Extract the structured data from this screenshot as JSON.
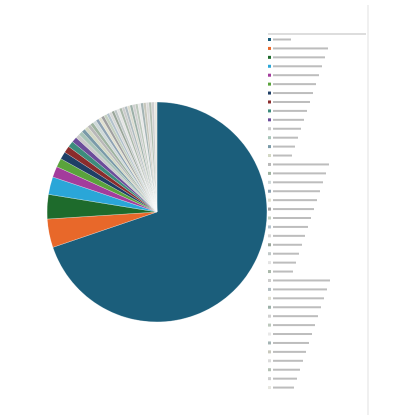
{
  "chart_data": {
    "type": "pie",
    "categories": [
      null,
      null,
      null,
      null,
      null,
      null,
      null,
      null,
      null,
      null,
      null,
      null,
      null,
      null,
      null,
      null,
      null,
      null,
      null,
      null,
      null,
      null,
      null,
      null,
      null,
      null,
      null,
      null,
      null,
      null,
      null,
      null,
      null,
      null,
      null,
      null,
      null,
      null,
      null,
      null
    ],
    "values": [
      70,
      4.2,
      3.6,
      2.6,
      1.6,
      1.3,
      1.1,
      1.0,
      0.9,
      0.8,
      0.6,
      0.6,
      0.55,
      0.55,
      0.5,
      0.5,
      0.5,
      0.45,
      0.45,
      0.45,
      0.45,
      0.4,
      0.4,
      0.4,
      0.4,
      0.4,
      0.4,
      0.4,
      0.4,
      0.4,
      0.4,
      0.4,
      0.4,
      0.4,
      0.4,
      0.4,
      0.4,
      0.4,
      0.4,
      0.4
    ],
    "colors": [
      "#1b5e7b",
      "#e8682a",
      "#1e6b2c",
      "#2aa6d8",
      "#a33c9c",
      "#5aa33c",
      "#1f3f66",
      "#8a2c2c",
      "#3c8c7c",
      "#6b4c9a",
      "#c9c9c9",
      "#a8c4b8",
      "#7a9aa8",
      "#d3d8c4",
      "#b8b8b8",
      "#9fb3a0",
      "#cfd9d9",
      "#8fa3b3",
      "#e0e0d0",
      "#a0a0a0",
      "#c4d0c0",
      "#b3c2cc",
      "#d8d8d8",
      "#9aa69a",
      "#c0c8c8",
      "#e4e4e4",
      "#aab8aa",
      "#cccccc",
      "#b0bcc0",
      "#dcdcd0",
      "#9cb0a8",
      "#d0d0d0",
      "#bcc8bc",
      "#e8e8e8",
      "#a4b4b4",
      "#c8c8bc",
      "#dadada",
      "#b4c0b4",
      "#cfcfcf",
      "#e6e6e0"
    ],
    "legend": "right"
  }
}
